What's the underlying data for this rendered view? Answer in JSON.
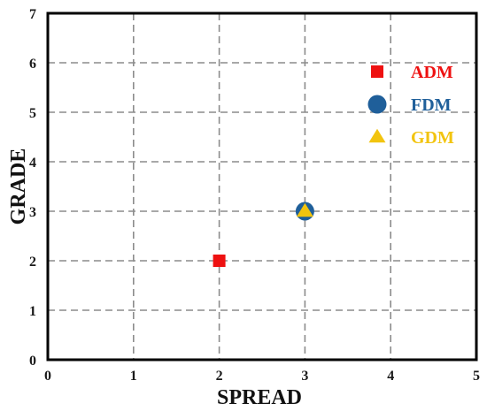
{
  "chart_data": {
    "type": "scatter",
    "title": "",
    "xlabel": "SPREAD",
    "ylabel": "GRADE",
    "xlim": [
      0,
      5
    ],
    "ylim": [
      0,
      7
    ],
    "xticks": [
      "0",
      "1",
      "2",
      "3",
      "4",
      "5"
    ],
    "yticks": [
      "0",
      "1",
      "2",
      "3",
      "4",
      "5",
      "6",
      "7"
    ],
    "grid": true,
    "legend_position": "top-right",
    "series": [
      {
        "name": "ADM",
        "marker": "square",
        "color": "#ee1111",
        "points": [
          {
            "x": 2,
            "y": 2
          }
        ]
      },
      {
        "name": "FDM",
        "marker": "circle",
        "color": "#1f5f9a",
        "points": [
          {
            "x": 3,
            "y": 3
          }
        ]
      },
      {
        "name": "GDM",
        "marker": "triangle",
        "color": "#f2c40f",
        "points": [
          {
            "x": 3,
            "y": 3
          }
        ]
      }
    ]
  }
}
